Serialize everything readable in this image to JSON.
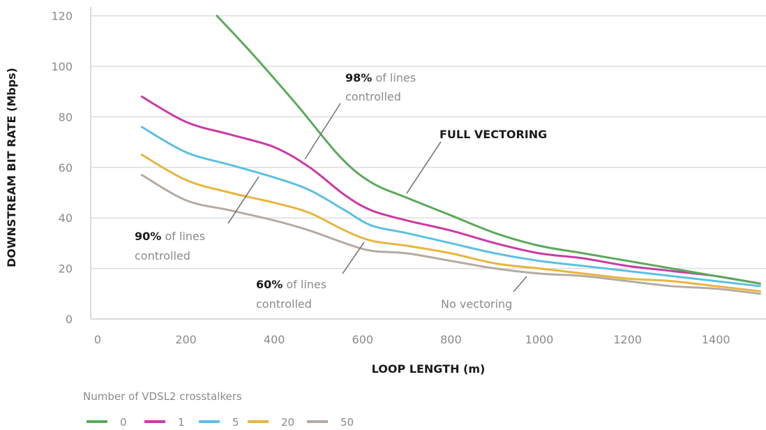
{
  "chart_data": {
    "type": "line",
    "xlabel": "LOOP LENGTH (m)",
    "ylabel": "DOWNSTREAM BIT RATE (Mbps)",
    "xlim": [
      0,
      1500
    ],
    "ylim": [
      0,
      120
    ],
    "xticks": [
      0,
      200,
      400,
      600,
      800,
      1000,
      1200,
      1400
    ],
    "yticks": [
      0,
      20,
      40,
      60,
      80,
      100,
      120
    ],
    "grid": "horizontal",
    "legend_title": "Number of VDSL2 crosstalkers",
    "legend_position": "bottom-left",
    "series": [
      {
        "name": "0",
        "color": "#5aaa5a",
        "x": [
          270,
          350,
          450,
          550,
          620,
          700,
          800,
          900,
          1000,
          1100,
          1200,
          1300,
          1400,
          1500
        ],
        "y": [
          120,
          105,
          85,
          64,
          54,
          48,
          41,
          34,
          29,
          26,
          23,
          20,
          17,
          14
        ]
      },
      {
        "name": "1",
        "color": "#c93aa5",
        "x": [
          100,
          200,
          300,
          400,
          480,
          560,
          620,
          700,
          800,
          900,
          1000,
          1100,
          1200,
          1300,
          1400,
          1500
        ],
        "y": [
          88,
          78,
          73,
          68,
          60,
          49,
          43,
          39,
          35,
          30,
          26,
          24,
          21,
          19,
          17,
          14
        ]
      },
      {
        "name": "5",
        "color": "#5cc0e3",
        "x": [
          100,
          200,
          300,
          400,
          480,
          560,
          620,
          700,
          800,
          900,
          1000,
          1100,
          1200,
          1300,
          1400,
          1500
        ],
        "y": [
          76,
          66,
          61,
          56,
          51,
          43,
          37,
          34,
          30,
          26,
          23,
          21,
          19,
          17,
          15,
          13
        ]
      },
      {
        "name": "20",
        "color": "#e8b53e",
        "x": [
          100,
          200,
          300,
          400,
          480,
          560,
          620,
          700,
          800,
          900,
          1000,
          1100,
          1200,
          1300,
          1400,
          1500
        ],
        "y": [
          65,
          55,
          50,
          46,
          42,
          35,
          31,
          29,
          26,
          22,
          20,
          18,
          16,
          15,
          13,
          11
        ]
      },
      {
        "name": "50",
        "color": "#b5aba3",
        "x": [
          100,
          200,
          300,
          400,
          480,
          560,
          620,
          700,
          800,
          900,
          1000,
          1100,
          1200,
          1300,
          1400,
          1500
        ],
        "y": [
          57,
          47,
          43,
          39,
          35,
          30,
          27,
          26,
          23,
          20,
          18,
          17,
          15,
          13,
          12,
          10
        ]
      }
    ],
    "annotations": [
      {
        "bold": "98%",
        "line1": " of lines",
        "line2": "controlled"
      },
      {
        "bold": "FULL VECTORING",
        "line1": "",
        "line2": ""
      },
      {
        "bold": "90%",
        "line1": " of lines",
        "line2": "controlled"
      },
      {
        "bold": "60%",
        "line1": " of lines",
        "line2": "controlled"
      },
      {
        "bold": "",
        "line1": "No vectoring",
        "line2": ""
      }
    ]
  }
}
